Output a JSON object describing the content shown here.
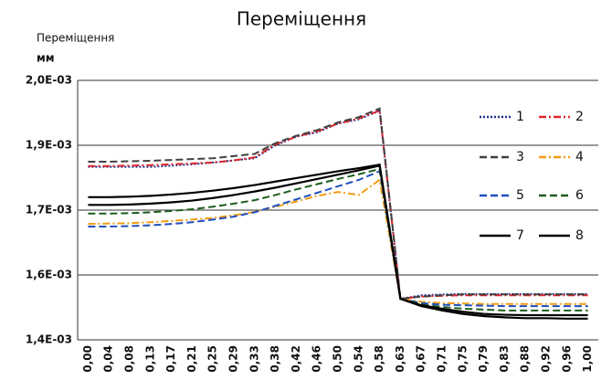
{
  "chart_data": {
    "type": "line",
    "title": "Переміщення",
    "ylabel": "Переміщення",
    "yunit": "мм",
    "categories": [
      "0,00",
      "0,04",
      "0,08",
      "0,13",
      "0,17",
      "0,21",
      "0,25",
      "0,29",
      "0,33",
      "0,38",
      "0,42",
      "0,46",
      "0,50",
      "0,54",
      "0,58",
      "0,63",
      "0,67",
      "0,71",
      "0,75",
      "0,79",
      "0,83",
      "0,88",
      "0,92",
      "0,96",
      "1,00"
    ],
    "ylim": [
      0.0014,
      0.002
    ],
    "yticks": [
      {
        "value": 0.0014,
        "label": "1,4E-03"
      },
      {
        "value": 0.00155,
        "label": "1,6E-03"
      },
      {
        "value": 0.0017,
        "label": "1,7E-03"
      },
      {
        "value": 0.00185,
        "label": "1,9E-03"
      },
      {
        "value": 0.002,
        "label": "2,0E-03"
      }
    ],
    "grid": true,
    "legend": "upper right",
    "series": [
      {
        "name": "1",
        "color": "#1f2f8f",
        "dash": "dotted",
        "values": [
          0.0018,
          0.0018,
          0.0018,
          0.0018,
          0.001803,
          0.001806,
          0.00181,
          0.001815,
          0.00182,
          0.00185,
          0.00187,
          0.00188,
          0.0019,
          0.00191,
          0.00193,
          0.001495,
          0.001503,
          0.001505,
          0.001506,
          0.001506,
          0.001506,
          0.001506,
          0.001506,
          0.001506,
          0.001506
        ]
      },
      {
        "name": "2",
        "color": "#e0262b",
        "dash": "dashdot",
        "values": [
          0.001802,
          0.001802,
          0.001803,
          0.001804,
          0.001806,
          0.001808,
          0.00181,
          0.001815,
          0.001822,
          0.001852,
          0.00187,
          0.001882,
          0.0019,
          0.001912,
          0.00193,
          0.001495,
          0.0015,
          0.001502,
          0.001503,
          0.001503,
          0.001503,
          0.001503,
          0.001503,
          0.001503,
          0.001503
        ]
      },
      {
        "name": "3",
        "color": "#404040",
        "dash": "dashed",
        "values": [
          0.001812,
          0.001812,
          0.001813,
          0.001814,
          0.001816,
          0.001818,
          0.00182,
          0.001825,
          0.00183,
          0.001855,
          0.001872,
          0.001885,
          0.001903,
          0.001915,
          0.001935,
          0.001495,
          0.0015,
          0.001503,
          0.001505,
          0.001505,
          0.001505,
          0.001505,
          0.001505,
          0.001505,
          0.001505
        ]
      },
      {
        "name": "4",
        "color": "#f39c12",
        "dash": "dashdot",
        "values": [
          0.001668,
          0.001669,
          0.00167,
          0.001672,
          0.001675,
          0.001678,
          0.001682,
          0.001688,
          0.001696,
          0.001708,
          0.00172,
          0.001733,
          0.001742,
          0.001735,
          0.00177,
          0.001495,
          0.001488,
          0.001485,
          0.001484,
          0.001483,
          0.001483,
          0.001483,
          0.001483,
          0.001483,
          0.001483
        ]
      },
      {
        "name": "5",
        "color": "#1f4fbf",
        "dash": "dashed",
        "values": [
          0.001662,
          0.001662,
          0.001663,
          0.001665,
          0.001668,
          0.001672,
          0.001678,
          0.001685,
          0.001695,
          0.00171,
          0.001725,
          0.00174,
          0.001755,
          0.00177,
          0.00179,
          0.001495,
          0.001485,
          0.001481,
          0.00148,
          0.001479,
          0.001478,
          0.001478,
          0.001478,
          0.001478,
          0.001478
        ]
      },
      {
        "name": "6",
        "color": "#1e5c1e",
        "dash": "dashed",
        "values": [
          0.001692,
          0.001692,
          0.001693,
          0.001695,
          0.001698,
          0.001702,
          0.001708,
          0.001715,
          0.001723,
          0.001735,
          0.001748,
          0.00176,
          0.001772,
          0.001783,
          0.001795,
          0.001495,
          0.001482,
          0.001476,
          0.001472,
          0.00147,
          0.001468,
          0.001468,
          0.001468,
          0.001468,
          0.001468
        ]
      },
      {
        "name": "7",
        "color": "#000000",
        "dash": "solid",
        "values": [
          0.00173,
          0.00173,
          0.001731,
          0.001733,
          0.001736,
          0.00174,
          0.001745,
          0.001751,
          0.001758,
          0.001766,
          0.001774,
          0.001782,
          0.00179,
          0.001797,
          0.001805,
          0.001495,
          0.00148,
          0.001472,
          0.001465,
          0.00146,
          0.001458,
          0.001457,
          0.001457,
          0.001457,
          0.001457
        ]
      },
      {
        "name": "8",
        "color": "#000000",
        "dash": "solid",
        "values": [
          0.001712,
          0.001712,
          0.001713,
          0.001715,
          0.001718,
          0.001722,
          0.001728,
          0.001735,
          0.001743,
          0.001752,
          0.001762,
          0.001772,
          0.001782,
          0.001792,
          0.001803,
          0.001495,
          0.001478,
          0.001468,
          0.00146,
          0.001455,
          0.001452,
          0.00145,
          0.00145,
          0.001449,
          0.001449
        ]
      }
    ]
  }
}
